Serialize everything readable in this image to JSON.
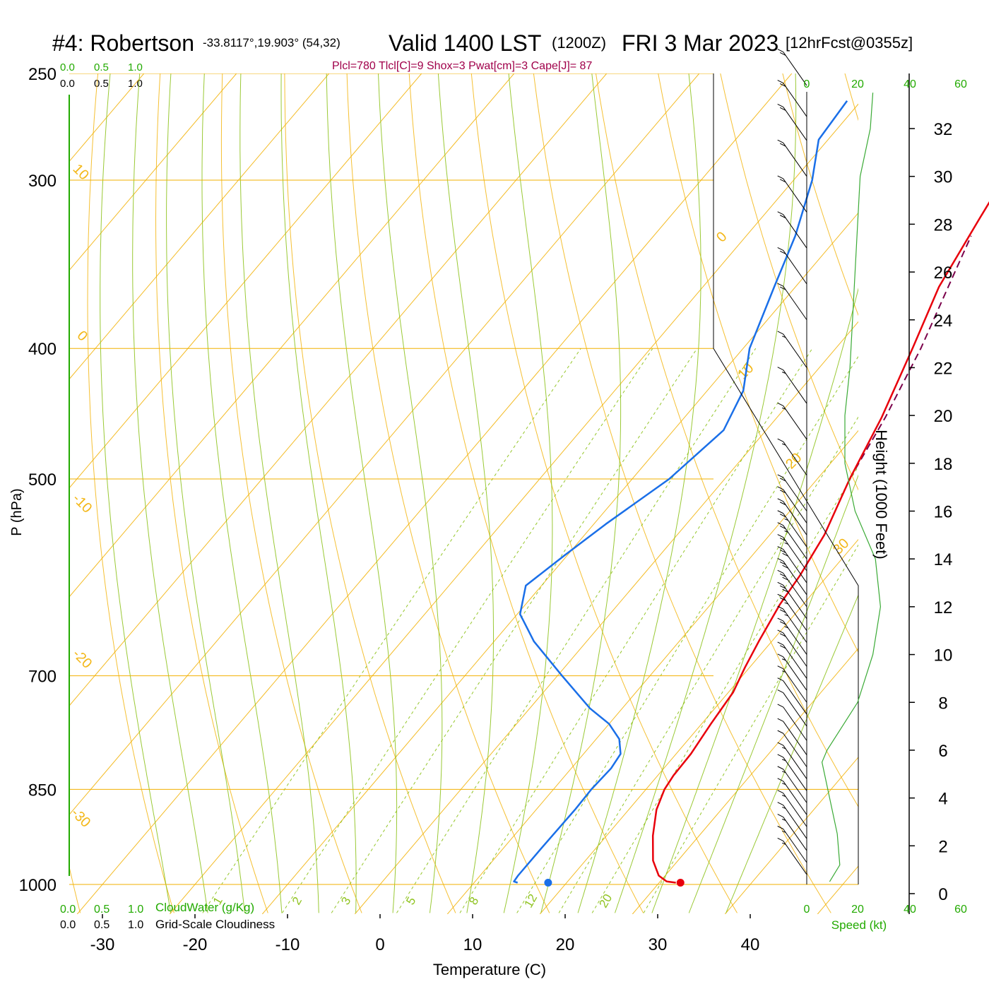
{
  "title": {
    "station": "#4: Robertson",
    "coords": "-33.8117°,19.903° (54,32)",
    "valid": "Valid 1400 LST",
    "zulu": "(1200Z)",
    "date": "FRI 3 Mar 2023",
    "forecast": "[12hrFcst@0355z]"
  },
  "params": "Plcl=780 Tlcl[C]=9 Shox=3 Pwat[cm]=3 Cape[J]= 87",
  "labels": {
    "top_scale_green": [
      "0.0",
      "0.5",
      "1.0"
    ],
    "top_scale_black": [
      "0.0",
      "0.5",
      "1.0"
    ],
    "bottom_scale_green": [
      "0.0",
      "0.5",
      "1.0"
    ],
    "bottom_scale_black": [
      "0.0",
      "0.5",
      "1.0"
    ],
    "cloudwater": "CloudWater (g/Kg)",
    "cloudiness": "Grid-Scale Cloudiness",
    "speed": "Speed (kt)",
    "speed_ticks": [
      "0",
      "20",
      "40",
      "60"
    ]
  },
  "chart_data": {
    "type": "skew-t",
    "xlabel": "Temperature (C)",
    "ylabel": "P (hPa)",
    "y2label": "Height (1000 Feet)",
    "x_ticks": [
      -30,
      -20,
      -10,
      0,
      10,
      20,
      30,
      40
    ],
    "pressure_ticks": [
      250,
      300,
      400,
      500,
      700,
      850,
      1000
    ],
    "height_ticks": [
      0,
      2,
      4,
      6,
      8,
      10,
      12,
      14,
      16,
      18,
      20,
      22,
      24,
      26,
      28,
      30,
      32
    ],
    "dry_adiabat_labels": [
      "10",
      "0",
      "-10",
      "-20",
      "-30",
      "0",
      "10",
      "20",
      "30"
    ],
    "mixing_ratio_labels": [
      "1",
      "2",
      "3",
      "5",
      "8",
      "12",
      "20"
    ],
    "temperature": [
      {
        "p": 997,
        "t": 31.8
      },
      {
        "p": 995,
        "t": 30.7
      },
      {
        "p": 985,
        "t": 29.3
      },
      {
        "p": 960,
        "t": 27.3
      },
      {
        "p": 920,
        "t": 25.0
      },
      {
        "p": 880,
        "t": 23.0
      },
      {
        "p": 850,
        "t": 22.0
      },
      {
        "p": 830,
        "t": 21.7
      },
      {
        "p": 800,
        "t": 21.6
      },
      {
        "p": 760,
        "t": 21.0
      },
      {
        "p": 720,
        "t": 20.5
      },
      {
        "p": 690,
        "t": 19.5
      },
      {
        "p": 660,
        "t": 18.6
      },
      {
        "p": 620,
        "t": 17.5
      },
      {
        "p": 590,
        "t": 17.0
      },
      {
        "p": 550,
        "t": 15.9
      },
      {
        "p": 500,
        "t": 13.5
      },
      {
        "p": 450,
        "t": 11.3
      },
      {
        "p": 400,
        "t": 8.3
      },
      {
        "p": 360,
        "t": 5.5
      },
      {
        "p": 320,
        "t": 3.6
      },
      {
        "p": 300,
        "t": 2.6
      },
      {
        "p": 280,
        "t": 1.7
      },
      {
        "p": 262,
        "t": 0.3
      }
    ],
    "dewpoint": [
      {
        "p": 997,
        "t": 14.7
      },
      {
        "p": 995,
        "t": 14.2
      },
      {
        "p": 985,
        "t": 14.1
      },
      {
        "p": 940,
        "t": 14.1
      },
      {
        "p": 880,
        "t": 14.2
      },
      {
        "p": 850,
        "t": 14.1
      },
      {
        "p": 820,
        "t": 14.3
      },
      {
        "p": 800,
        "t": 14.0
      },
      {
        "p": 780,
        "t": 12.5
      },
      {
        "p": 760,
        "t": 10.0
      },
      {
        "p": 740,
        "t": 6.5
      },
      {
        "p": 700,
        "t": 0.5
      },
      {
        "p": 660,
        "t": -5.7
      },
      {
        "p": 630,
        "t": -9.7
      },
      {
        "p": 600,
        "t": -11.7
      },
      {
        "p": 570,
        "t": -10.3
      },
      {
        "p": 540,
        "t": -8.7
      },
      {
        "p": 500,
        "t": -6.0
      },
      {
        "p": 460,
        "t": -4.6
      },
      {
        "p": 430,
        "t": -6.1
      },
      {
        "p": 400,
        "t": -9.3
      },
      {
        "p": 360,
        "t": -12.3
      },
      {
        "p": 330,
        "t": -14.7
      },
      {
        "p": 300,
        "t": -18.0
      },
      {
        "p": 280,
        "t": -21.0
      },
      {
        "p": 262,
        "t": -21.5
      }
    ],
    "parcel": [
      {
        "p": 500,
        "t": 13.5
      },
      {
        "p": 450,
        "t": 11.7
      },
      {
        "p": 400,
        "t": 9.2
      },
      {
        "p": 360,
        "t": 6.5
      },
      {
        "p": 330,
        "t": 4.3
      }
    ],
    "surface_temp": {
      "p": 997,
      "t": 32.3
    },
    "surface_dewpoint": {
      "p": 997,
      "t": 18.0
    },
    "wind_speed_profile": [
      {
        "h": 0.5,
        "kt": 9
      },
      {
        "h": 1.2,
        "kt": 13
      },
      {
        "h": 2.5,
        "kt": 12
      },
      {
        "h": 4.0,
        "kt": 9
      },
      {
        "h": 5.5,
        "kt": 6
      },
      {
        "h": 6.0,
        "kt": 8
      },
      {
        "h": 8.0,
        "kt": 20
      },
      {
        "h": 10.0,
        "kt": 26
      },
      {
        "h": 12.0,
        "kt": 29
      },
      {
        "h": 14.0,
        "kt": 27
      },
      {
        "h": 16.0,
        "kt": 19
      },
      {
        "h": 18.0,
        "kt": 15
      },
      {
        "h": 20.0,
        "kt": 15
      },
      {
        "h": 22.0,
        "kt": 17
      },
      {
        "h": 24.0,
        "kt": 18
      },
      {
        "h": 26.0,
        "kt": 19
      },
      {
        "h": 28.0,
        "kt": 20
      },
      {
        "h": 30.0,
        "kt": 21
      },
      {
        "h": 32.0,
        "kt": 25
      },
      {
        "h": 33.5,
        "kt": 26
      }
    ],
    "wind_barbs": [
      {
        "h": 0.8,
        "kt": 15
      },
      {
        "h": 1.3,
        "kt": 15
      },
      {
        "h": 1.8,
        "kt": 15
      },
      {
        "h": 2.3,
        "kt": 15
      },
      {
        "h": 2.8,
        "kt": 15
      },
      {
        "h": 3.3,
        "kt": 15
      },
      {
        "h": 3.8,
        "kt": 15
      },
      {
        "h": 4.3,
        "kt": 15
      },
      {
        "h": 4.8,
        "kt": 15
      },
      {
        "h": 5.3,
        "kt": 10
      },
      {
        "h": 5.8,
        "kt": 10
      },
      {
        "h": 6.4,
        "kt": 10
      },
      {
        "h": 7.0,
        "kt": 10
      },
      {
        "h": 7.5,
        "kt": 10
      },
      {
        "h": 8.0,
        "kt": 15
      },
      {
        "h": 8.5,
        "kt": 15
      },
      {
        "h": 9.0,
        "kt": 20
      },
      {
        "h": 9.5,
        "kt": 20
      },
      {
        "h": 10.0,
        "kt": 25
      },
      {
        "h": 10.5,
        "kt": 25
      },
      {
        "h": 11.0,
        "kt": 25
      },
      {
        "h": 11.5,
        "kt": 30
      },
      {
        "h": 12.0,
        "kt": 30
      },
      {
        "h": 12.5,
        "kt": 30
      },
      {
        "h": 13.0,
        "kt": 30
      },
      {
        "h": 13.5,
        "kt": 25
      },
      {
        "h": 14.0,
        "kt": 25
      },
      {
        "h": 14.5,
        "kt": 25
      },
      {
        "h": 15.0,
        "kt": 20
      },
      {
        "h": 15.5,
        "kt": 20
      },
      {
        "h": 16.0,
        "kt": 20
      },
      {
        "h": 17.5,
        "kt": 15
      },
      {
        "h": 19.0,
        "kt": 15
      },
      {
        "h": 20.5,
        "kt": 15
      },
      {
        "h": 22.0,
        "kt": 15
      },
      {
        "h": 24.0,
        "kt": 20
      },
      {
        "h": 25.5,
        "kt": 20
      },
      {
        "h": 27.0,
        "kt": 20
      },
      {
        "h": 28.5,
        "kt": 20
      },
      {
        "h": 30.0,
        "kt": 20
      },
      {
        "h": 31.5,
        "kt": 20
      },
      {
        "h": 32.5,
        "kt": 20
      },
      {
        "h": 33.8,
        "kt": 20
      }
    ],
    "colors": {
      "temperature": "#e8000b",
      "dewpoint": "#1a6fe8",
      "parcel": "#7a004a",
      "isobar": "#f2b000",
      "dry_adiabat": "#f2b000",
      "moist_adiabat": "#8fc31f",
      "mixing_ratio": "#8fc31f",
      "params": "#a0004a",
      "green_label": "#22aa00",
      "wind_speed": "#3aaa35"
    }
  }
}
